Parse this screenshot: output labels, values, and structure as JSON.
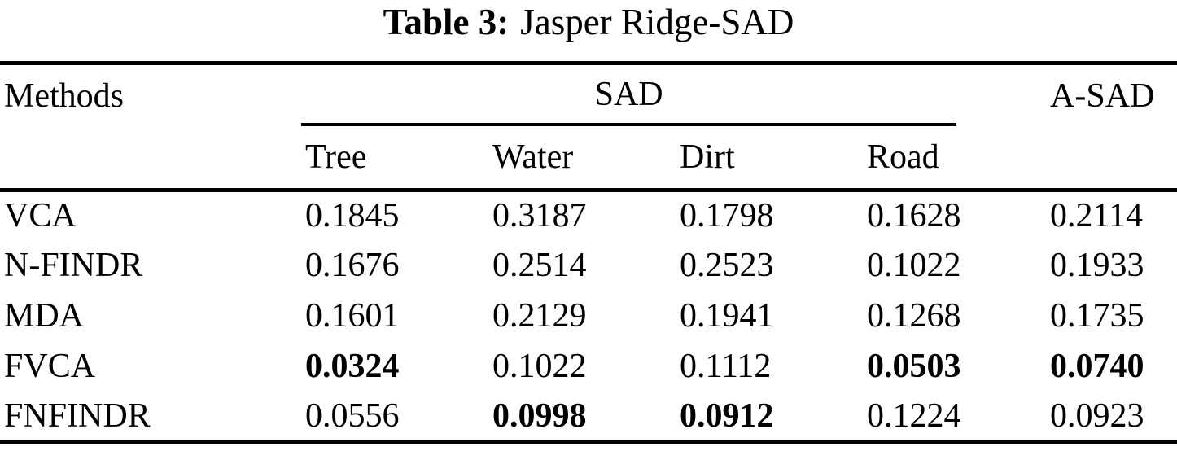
{
  "caption": {
    "label": "Table 3:",
    "title": "Jasper Ridge-SAD"
  },
  "table": {
    "header": {
      "methods": "Methods",
      "sad_group": "SAD",
      "asad": "A-SAD"
    },
    "sub_headers": [
      "Tree",
      "Water",
      "Dirt",
      "Road"
    ],
    "rows": [
      {
        "method": "VCA",
        "values": [
          "0.1845",
          "0.3187",
          "0.1798",
          "0.1628",
          "0.2114"
        ],
        "bold": [
          false,
          false,
          false,
          false,
          false
        ]
      },
      {
        "method": "N-FINDR",
        "values": [
          "0.1676",
          "0.2514",
          "0.2523",
          "0.1022",
          "0.1933"
        ],
        "bold": [
          false,
          false,
          false,
          false,
          false
        ]
      },
      {
        "method": "MDA",
        "values": [
          "0.1601",
          "0.2129",
          "0.1941",
          "0.1268",
          "0.1735"
        ],
        "bold": [
          false,
          false,
          false,
          false,
          false
        ]
      },
      {
        "method": "FVCA",
        "values": [
          "0.0324",
          "0.1022",
          "0.1112",
          "0.0503",
          "0.0740"
        ],
        "bold": [
          true,
          false,
          false,
          true,
          true
        ]
      },
      {
        "method": "FNFINDR",
        "values": [
          "0.0556",
          "0.0998",
          "0.0912",
          "0.1224",
          "0.0923"
        ],
        "bold": [
          false,
          true,
          true,
          false,
          false
        ]
      }
    ]
  },
  "colors": {
    "text": "#000000",
    "background": "#ffffff",
    "rule": "#000000"
  }
}
